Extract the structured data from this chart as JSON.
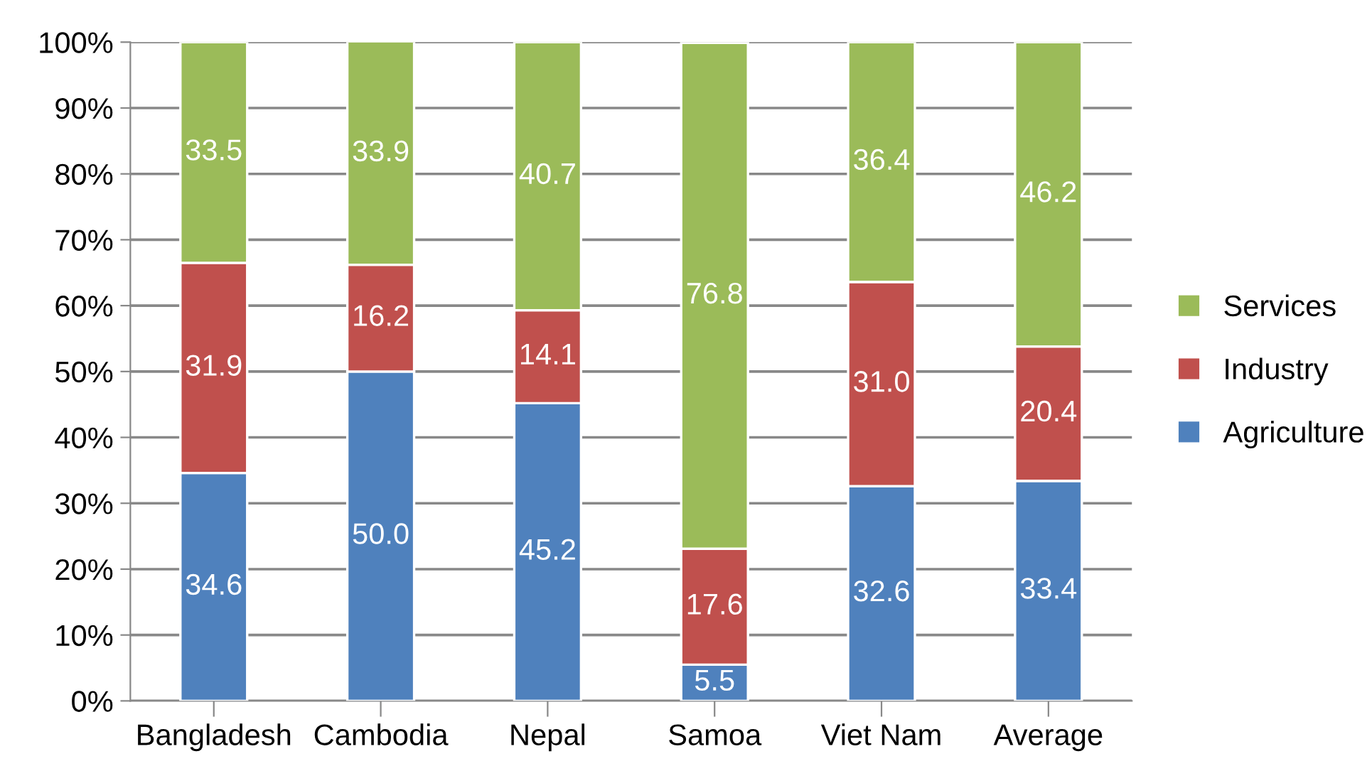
{
  "chart_data": {
    "type": "bar",
    "stacked": true,
    "categories": [
      "Bangladesh",
      "Cambodia",
      "Nepal",
      "Samoa",
      "Viet Nam",
      "Average"
    ],
    "series": [
      {
        "name": "Agriculture",
        "color": "#4f81bd",
        "values": [
          34.6,
          50.0,
          45.2,
          5.5,
          32.6,
          33.4
        ],
        "value_labels": [
          "34.6",
          "50.0",
          "45.2",
          "5.5",
          "32.6",
          "33.4"
        ]
      },
      {
        "name": "Industry",
        "color": "#c0504d",
        "values": [
          31.9,
          16.2,
          14.1,
          17.6,
          31.0,
          20.4
        ],
        "value_labels": [
          "31.9",
          "16.2",
          "14.1",
          "17.6",
          "31.0",
          "20.4"
        ]
      },
      {
        "name": "Services",
        "color": "#9bbb59",
        "values": [
          33.5,
          33.9,
          40.7,
          76.8,
          36.4,
          46.2
        ],
        "value_labels": [
          "33.5",
          "33.9",
          "40.7",
          "76.8",
          "36.4",
          "46.2"
        ]
      }
    ],
    "ylim": [
      0,
      100
    ],
    "yticks": [
      {
        "value": 0,
        "label": "0%"
      },
      {
        "value": 10,
        "label": "10%"
      },
      {
        "value": 20,
        "label": "20%"
      },
      {
        "value": 30,
        "label": "30%"
      },
      {
        "value": 40,
        "label": "40%"
      },
      {
        "value": 50,
        "label": "50%"
      },
      {
        "value": 60,
        "label": "60%"
      },
      {
        "value": 70,
        "label": "70%"
      },
      {
        "value": 80,
        "label": "80%"
      },
      {
        "value": 90,
        "label": "90%"
      },
      {
        "value": 100,
        "label": "100%"
      }
    ],
    "grid": "y",
    "legend": "right"
  }
}
